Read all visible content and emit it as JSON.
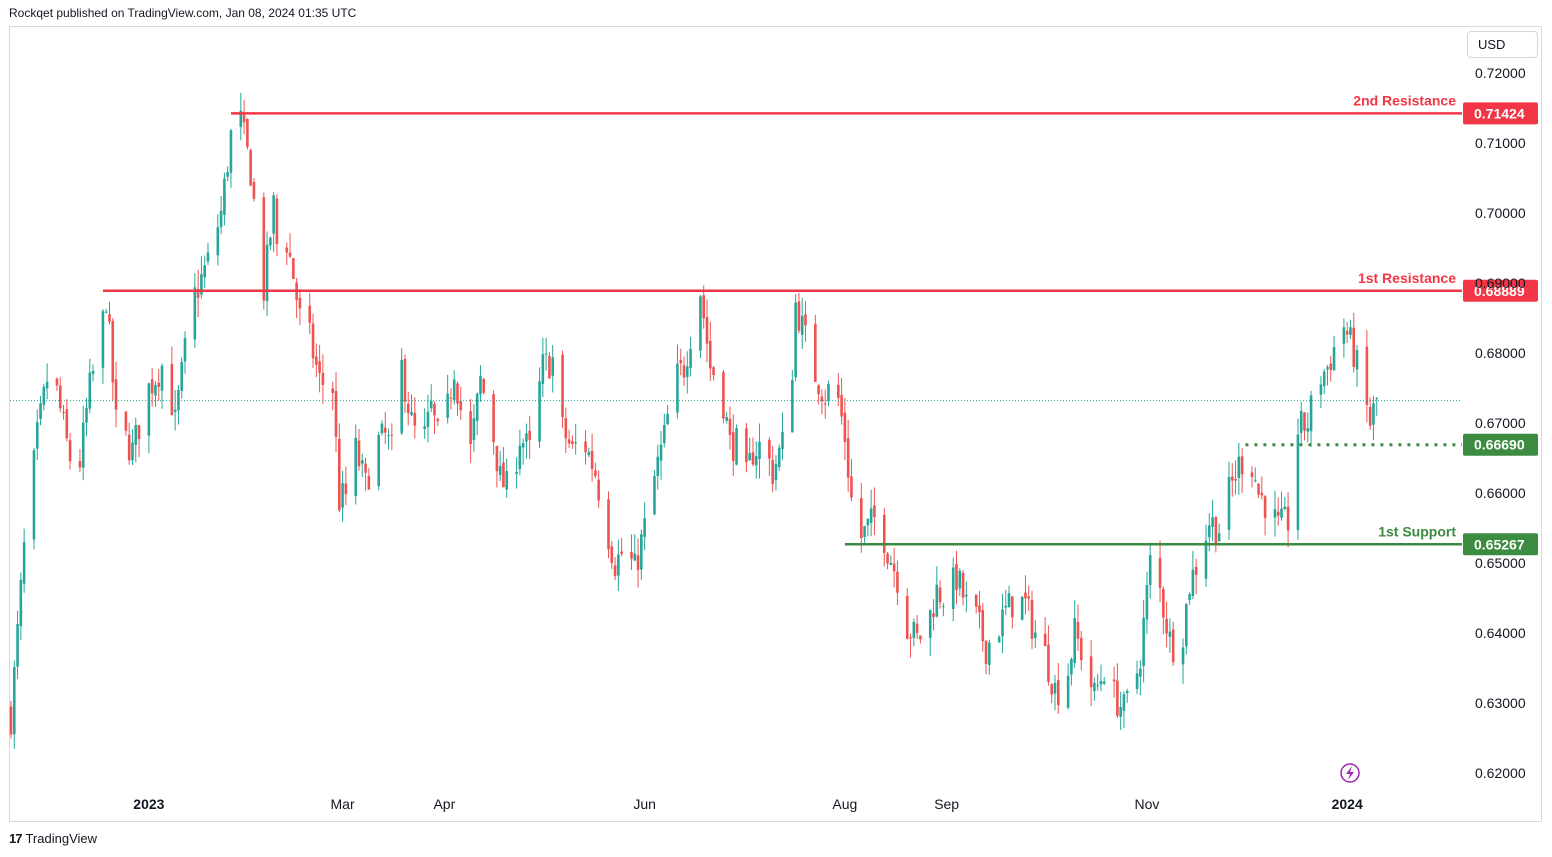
{
  "header": {
    "publisher": "Rockqet published on TradingView.com, Jan 08, 2024 01:35 UTC"
  },
  "currency_button": {
    "label": "USD"
  },
  "footer": {
    "brand": "TradingView",
    "logo_mark": "17"
  },
  "colors": {
    "up": "#26a69a",
    "down": "#ef5350",
    "resistance": "#f23645",
    "support": "#3d8b40",
    "current": "#26a69a",
    "event": "#9c27b0"
  },
  "chart_data": {
    "type": "candlestick",
    "title": "",
    "xlabel": "",
    "ylabel": "",
    "ylim": [
      0.615,
      0.7235
    ],
    "y_ticks": [
      "0.72000",
      "0.71000",
      "0.70000",
      "0.69000",
      "0.68000",
      "0.67000",
      "0.66000",
      "0.65000",
      "0.64000",
      "0.63000",
      "0.62000"
    ],
    "x_ticks": [
      {
        "label": "2023",
        "bold": true,
        "day": 42
      },
      {
        "label": "Mar",
        "bold": false,
        "day": 101
      },
      {
        "label": "Apr",
        "bold": false,
        "day": 132
      },
      {
        "label": "Jun",
        "bold": false,
        "day": 193
      },
      {
        "label": "Aug",
        "bold": false,
        "day": 254
      },
      {
        "label": "Sep",
        "bold": false,
        "day": 285
      },
      {
        "label": "Nov",
        "bold": false,
        "day": 346
      },
      {
        "label": "2024",
        "bold": true,
        "day": 407
      }
    ],
    "levels": [
      {
        "name": "2nd Resistance",
        "value": "0.71424",
        "price": 0.71424,
        "from_day": 67,
        "style": "solid",
        "color": "#f23645"
      },
      {
        "name": "1st Resistance",
        "value": "0.68889",
        "price": 0.68889,
        "from_day": 28,
        "style": "solid",
        "color": "#f23645"
      },
      {
        "name": "",
        "value": "0.66690",
        "price": 0.6669,
        "from_day": 376,
        "style": "dotted",
        "color": "#3d8b40"
      },
      {
        "name": "1st Support",
        "value": "0.65267",
        "price": 0.65267,
        "from_day": 254,
        "style": "solid",
        "color": "#3d8b40"
      }
    ],
    "current_price": 0.6732,
    "pivots": [
      [
        0,
        0.628
      ],
      [
        4,
        0.652
      ],
      [
        8,
        0.668
      ],
      [
        12,
        0.679
      ],
      [
        17,
        0.667
      ],
      [
        20,
        0.661
      ],
      [
        24,
        0.675
      ],
      [
        27,
        0.681
      ],
      [
        29,
        0.688
      ],
      [
        32,
        0.67
      ],
      [
        37,
        0.666
      ],
      [
        42,
        0.675
      ],
      [
        47,
        0.679
      ],
      [
        50,
        0.67
      ],
      [
        55,
        0.687
      ],
      [
        60,
        0.693
      ],
      [
        64,
        0.7
      ],
      [
        67,
        0.711
      ],
      [
        70,
        0.713
      ],
      [
        73,
        0.706
      ],
      [
        75,
        0.697
      ],
      [
        77,
        0.689
      ],
      [
        80,
        0.701
      ],
      [
        82,
        0.69
      ],
      [
        84,
        0.696
      ],
      [
        86,
        0.691
      ],
      [
        88,
        0.685
      ],
      [
        91,
        0.682
      ],
      [
        94,
        0.676
      ],
      [
        98,
        0.675
      ],
      [
        100,
        0.659
      ],
      [
        103,
        0.66
      ],
      [
        105,
        0.666
      ],
      [
        108,
        0.661
      ],
      [
        111,
        0.667
      ],
      [
        114,
        0.668
      ],
      [
        116,
        0.666
      ],
      [
        119,
        0.678
      ],
      [
        122,
        0.67
      ],
      [
        125,
        0.666
      ],
      [
        128,
        0.672
      ],
      [
        131,
        0.666
      ],
      [
        135,
        0.678
      ],
      [
        138,
        0.669
      ],
      [
        140,
        0.666
      ],
      [
        143,
        0.676
      ],
      [
        146,
        0.671
      ],
      [
        149,
        0.662
      ],
      [
        152,
        0.66
      ],
      [
        155,
        0.668
      ],
      [
        158,
        0.666
      ],
      [
        162,
        0.678
      ],
      [
        165,
        0.679
      ],
      [
        168,
        0.669
      ],
      [
        171,
        0.666
      ],
      [
        174,
        0.668
      ],
      [
        178,
        0.663
      ],
      [
        181,
        0.656
      ],
      [
        184,
        0.65
      ],
      [
        187,
        0.652
      ],
      [
        190,
        0.649
      ],
      [
        193,
        0.655
      ],
      [
        196,
        0.662
      ],
      [
        199,
        0.668
      ],
      [
        202,
        0.676
      ],
      [
        205,
        0.678
      ],
      [
        208,
        0.685
      ],
      [
        210,
        0.689
      ],
      [
        213,
        0.678
      ],
      [
        216,
        0.676
      ],
      [
        219,
        0.667
      ],
      [
        221,
        0.667
      ],
      [
        223,
        0.66
      ],
      [
        226,
        0.666
      ],
      [
        229,
        0.667
      ],
      [
        232,
        0.663
      ],
      [
        235,
        0.667
      ],
      [
        237,
        0.669
      ],
      [
        239,
        0.687
      ],
      [
        242,
        0.682
      ],
      [
        245,
        0.677
      ],
      [
        248,
        0.674
      ],
      [
        251,
        0.676
      ],
      [
        254,
        0.668
      ],
      [
        256,
        0.659
      ],
      [
        258,
        0.653
      ],
      [
        261,
        0.655
      ],
      [
        264,
        0.657
      ],
      [
        267,
        0.652
      ],
      [
        270,
        0.648
      ],
      [
        273,
        0.641
      ],
      [
        276,
        0.639
      ],
      [
        279,
        0.641
      ],
      [
        282,
        0.646
      ],
      [
        285,
        0.645
      ],
      [
        288,
        0.648
      ],
      [
        291,
        0.644
      ],
      [
        294,
        0.642
      ],
      [
        297,
        0.638
      ],
      [
        300,
        0.64
      ],
      [
        303,
        0.643
      ],
      [
        306,
        0.645
      ],
      [
        309,
        0.644
      ],
      [
        312,
        0.64
      ],
      [
        315,
        0.637
      ],
      [
        318,
        0.632
      ],
      [
        321,
        0.632
      ],
      [
        324,
        0.64
      ],
      [
        327,
        0.636
      ],
      [
        330,
        0.631
      ],
      [
        333,
        0.635
      ],
      [
        336,
        0.631
      ],
      [
        339,
        0.629
      ],
      [
        342,
        0.632
      ],
      [
        344,
        0.637
      ],
      [
        347,
        0.65
      ],
      [
        350,
        0.646
      ],
      [
        353,
        0.639
      ],
      [
        356,
        0.637
      ],
      [
        359,
        0.647
      ],
      [
        362,
        0.651
      ],
      [
        365,
        0.656
      ],
      [
        368,
        0.655
      ],
      [
        371,
        0.66
      ],
      [
        374,
        0.664
      ],
      [
        377,
        0.666
      ],
      [
        380,
        0.66
      ],
      [
        383,
        0.658
      ],
      [
        386,
        0.655
      ],
      [
        389,
        0.656
      ],
      [
        392,
        0.669
      ],
      [
        395,
        0.67
      ],
      [
        398,
        0.676
      ],
      [
        401,
        0.678
      ],
      [
        404,
        0.682
      ],
      [
        406,
        0.684
      ],
      [
        409,
        0.68
      ],
      [
        412,
        0.674
      ],
      [
        414,
        0.67
      ],
      [
        416,
        0.6732
      ]
    ]
  }
}
